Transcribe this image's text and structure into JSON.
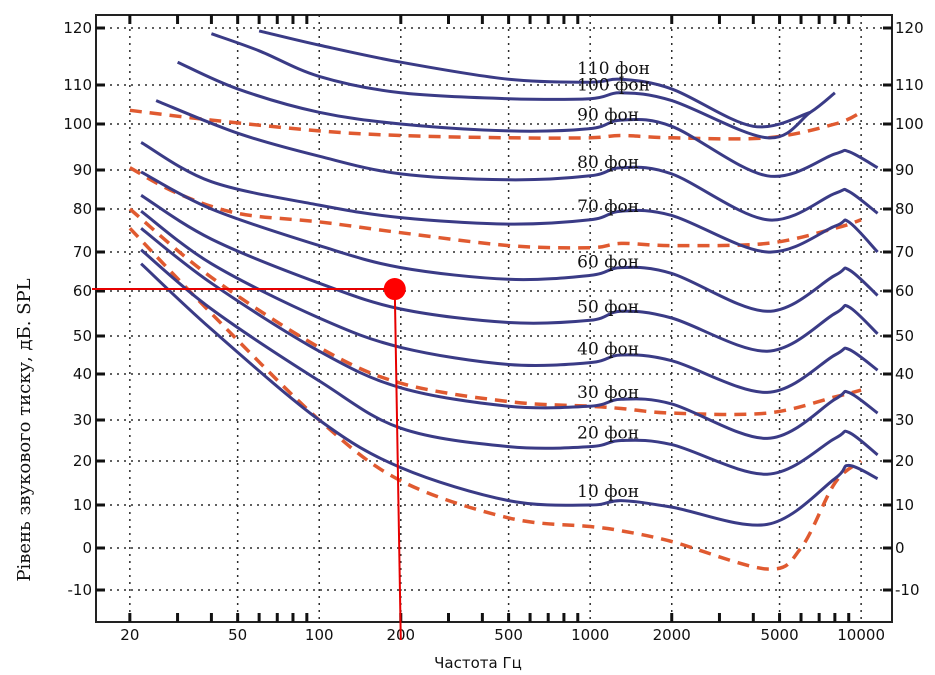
{
  "chart_data": {
    "type": "line",
    "xlabel": "Частота Гц",
    "ylabel": "Рівень звукового тиску, дБ. SPL",
    "x_scale": "log",
    "xlim": [
      15,
      13000
    ],
    "x_ticks": [
      {
        "value": 20,
        "label": "20"
      },
      {
        "value": 50,
        "label": "50"
      },
      {
        "value": 100,
        "label": "100"
      },
      {
        "value": 200,
        "label": "200"
      },
      {
        "value": 500,
        "label": "500"
      },
      {
        "value": 1000,
        "label": "1000"
      },
      {
        "value": 2000,
        "label": "2000"
      },
      {
        "value": 5000,
        "label": "5000"
      },
      {
        "value": 10000,
        "label": "10000"
      }
    ],
    "y_ticks": [
      {
        "label": "120",
        "level": 120
      },
      {
        "label": "110",
        "level": 110
      },
      {
        "label": "100",
        "level": 100
      },
      {
        "label": "90",
        "level": 90
      },
      {
        "label": "80",
        "level": 80
      },
      {
        "label": "70",
        "level": 70
      },
      {
        "label": "60",
        "level": 60
      },
      {
        "label": "50",
        "level": 50
      },
      {
        "label": "40",
        "level": 40
      },
      {
        "label": "30",
        "level": 30
      },
      {
        "label": "20",
        "level": 20
      },
      {
        "label": "10",
        "level": 10
      },
      {
        "label": "0",
        "level": 0
      },
      {
        "label": "-10",
        "level": -10
      }
    ],
    "grid": true,
    "series": [
      {
        "name": "110 фон",
        "x": [
          60,
          100,
          200,
          500,
          1000,
          1300,
          2000,
          4000,
          6500
        ],
        "y": [
          119.5,
          117,
          114,
          111,
          110.5,
          111,
          109,
          99.5,
          103
        ]
      },
      {
        "name": "100 фон",
        "x": [
          40,
          60,
          100,
          200,
          500,
          1000,
          1300,
          2000,
          4500,
          6500,
          8000
        ],
        "y": [
          119,
          116,
          111.5,
          108,
          106.5,
          106.5,
          108,
          106,
          97,
          103,
          108
        ]
      },
      {
        "name": "90 фон",
        "x": [
          30,
          50,
          100,
          200,
          500,
          1000,
          1300,
          2000,
          4500,
          8000,
          9000,
          11500
        ],
        "y": [
          114,
          109,
          103,
          100,
          98.5,
          99,
          101,
          99.5,
          88.5,
          93.5,
          94,
          90.5
        ]
      },
      {
        "name": "80 фон",
        "x": [
          25,
          50,
          100,
          200,
          500,
          1000,
          1300,
          2000,
          4500,
          8000,
          9000,
          11500
        ],
        "y": [
          106,
          98,
          93,
          89,
          87.5,
          88.5,
          90.5,
          89,
          77.5,
          84,
          84.5,
          79
        ]
      },
      {
        "name": "70 фон",
        "x": [
          22,
          40,
          100,
          200,
          500,
          1000,
          1300,
          2000,
          4500,
          8000,
          9000,
          11500
        ],
        "y": [
          96,
          87,
          81,
          78,
          76.5,
          77.5,
          79.5,
          78.5,
          70,
          76,
          77,
          70
        ]
      },
      {
        "name": "60 фон",
        "x": [
          22,
          40,
          100,
          200,
          500,
          1000,
          1300,
          2000,
          4500,
          8000,
          9000,
          11500
        ],
        "y": [
          89.5,
          80,
          71.5,
          66,
          63,
          64,
          66,
          64.5,
          55.5,
          64,
          65.5,
          59
        ]
      },
      {
        "name": "50 фон",
        "x": [
          22,
          40,
          100,
          200,
          500,
          1000,
          1300,
          2000,
          4500,
          8000,
          9000,
          11500
        ],
        "y": [
          83.5,
          73,
          62,
          56,
          53,
          53.5,
          55.5,
          54,
          46,
          55,
          56.5,
          50.5
        ]
      },
      {
        "name": "40 фон",
        "x": [
          22,
          40,
          100,
          200,
          500,
          1000,
          1300,
          2000,
          4500,
          8000,
          9000,
          11500
        ],
        "y": [
          79.5,
          67,
          54,
          47,
          42.5,
          43,
          45,
          43.5,
          36,
          45,
          46.5,
          41
        ]
      },
      {
        "name": "30 фон",
        "x": [
          22,
          40,
          100,
          200,
          500,
          1000,
          1300,
          2000,
          4500,
          8000,
          9000,
          11500
        ],
        "y": [
          75.5,
          62,
          46,
          37,
          33,
          33,
          34.5,
          33.5,
          25.5,
          34.5,
          36,
          31.5
        ]
      },
      {
        "name": "20 фон",
        "x": [
          22,
          40,
          100,
          200,
          500,
          1000,
          1300,
          2000,
          4500,
          8000,
          9000,
          11500
        ],
        "y": [
          70.5,
          56,
          38.5,
          28,
          23.5,
          23.5,
          25,
          24,
          17,
          25.5,
          27,
          21.5
        ]
      },
      {
        "name": "10 фон",
        "x": [
          22,
          40,
          100,
          200,
          500,
          1000,
          1300,
          2000,
          4500,
          8000,
          9000,
          11500
        ],
        "y": [
          67,
          51.5,
          30,
          18.5,
          11,
          10,
          11,
          9.5,
          5.5,
          16,
          19,
          16
        ]
      }
    ],
    "dashed_series": [
      {
        "x": [
          20,
          40,
          100,
          200,
          500,
          1000,
          1300,
          2000,
          4500,
          8000,
          10000
        ],
        "y": [
          103.5,
          101,
          98.5,
          97.5,
          97,
          97,
          97.5,
          97,
          97,
          100,
          103
        ]
      },
      {
        "x": [
          20,
          30,
          50,
          100,
          200,
          500,
          1000,
          1300,
          2000,
          4500,
          8000,
          10000
        ],
        "y": [
          90.5,
          84,
          79,
          77,
          74.5,
          71.5,
          71,
          72,
          71.5,
          72,
          75.5,
          77.5
        ]
      },
      {
        "x": [
          20,
          40,
          100,
          200,
          500,
          1000,
          1300,
          2000,
          4500,
          8000,
          10000
        ],
        "y": [
          80,
          63.5,
          47,
          38,
          34,
          33,
          32.5,
          31.5,
          31.5,
          35,
          36.5
        ]
      },
      {
        "x": [
          20,
          40,
          100,
          200,
          500,
          1000,
          1300,
          2000,
          4500,
          6000,
          8000,
          10000
        ],
        "y": [
          75.5,
          55,
          30,
          15.5,
          7,
          5,
          4,
          1.5,
          -5,
          0,
          15,
          20
        ]
      }
    ],
    "annotation": {
      "point": {
        "x": 190,
        "y": 60.5
      },
      "guide_to_x": 200
    }
  },
  "style": {
    "curve_color": "#3a3b86",
    "dashed_color": "#e05a30",
    "marker_color": "#ff0000",
    "guide_color": "#e60000",
    "grid_color": "#2b2b2b"
  }
}
